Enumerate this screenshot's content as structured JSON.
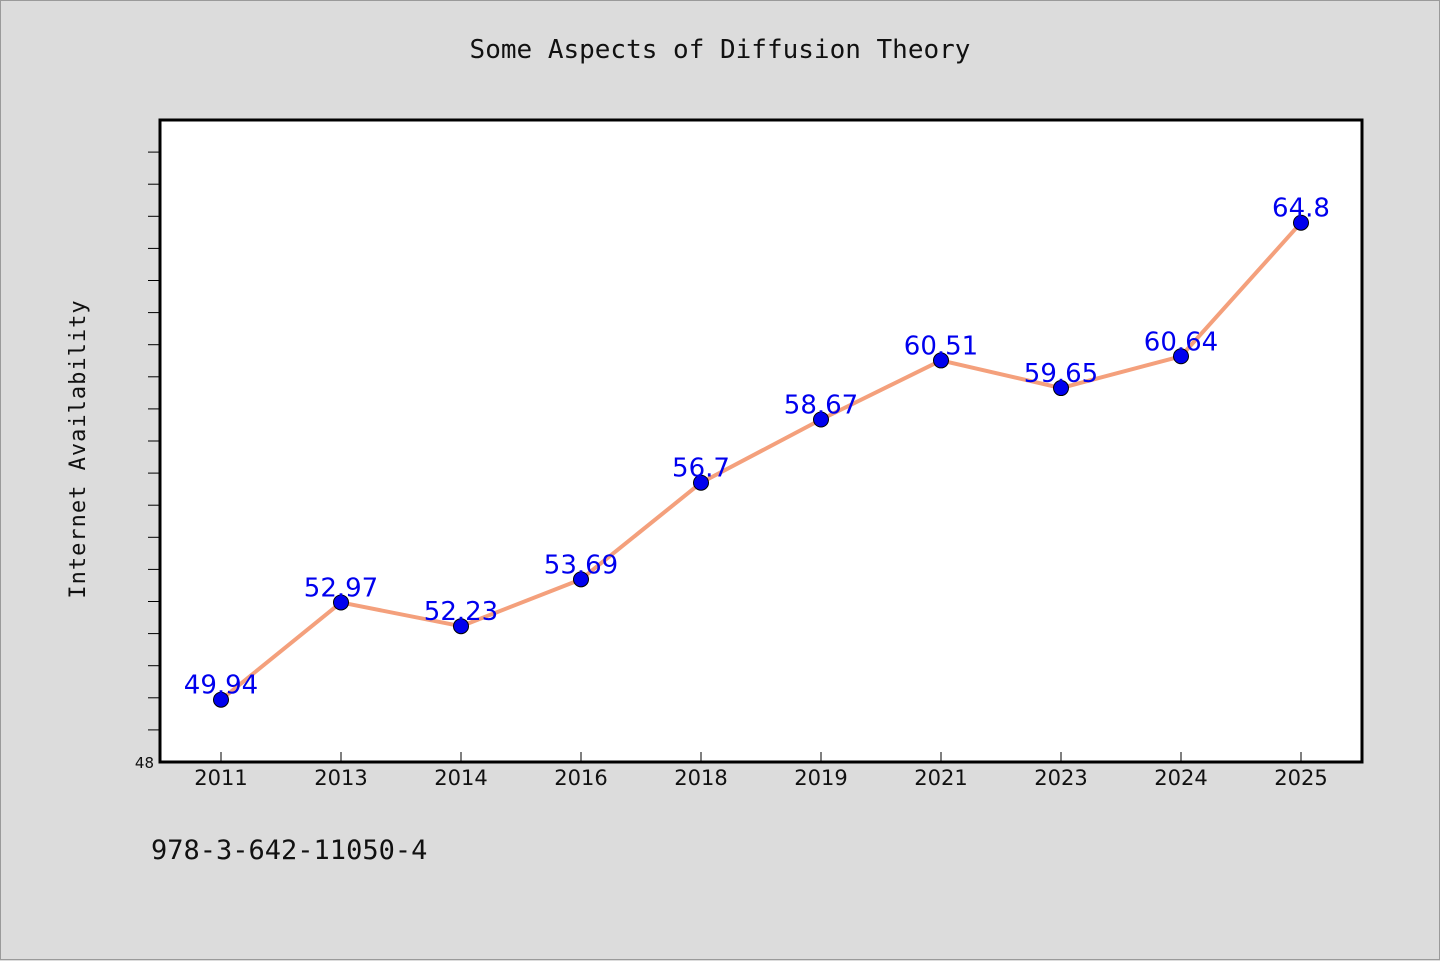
{
  "chart_data": {
    "type": "line",
    "title": "Some Aspects of Diffusion Theory",
    "xlabel": "",
    "ylabel": "Internet Availability",
    "categories": [
      "2011",
      "2013",
      "2014",
      "2016",
      "2018",
      "2019",
      "2021",
      "2023",
      "2024",
      "2025"
    ],
    "series": [
      {
        "values": [
          49.94,
          52.97,
          52.23,
          53.69,
          56.7,
          58.67,
          60.51,
          59.65,
          60.64,
          64.8
        ],
        "value_labels": [
          "49.94",
          "52.97",
          "52.23",
          "53.69",
          "56.7",
          "58.67",
          "60.51",
          "59.65",
          "60.64",
          "64.8"
        ],
        "line_color": "#f4a07c",
        "marker_color": "#0000ee",
        "label_color": "#0000ee"
      }
    ],
    "ylim": [
      48,
      68
    ],
    "y_tick_labels": [
      "48"
    ],
    "grid": false,
    "plot_background": "#ffffff",
    "figure_background": "#dcdcdc"
  },
  "footer": {
    "text": "978-3-642-11050-4"
  }
}
